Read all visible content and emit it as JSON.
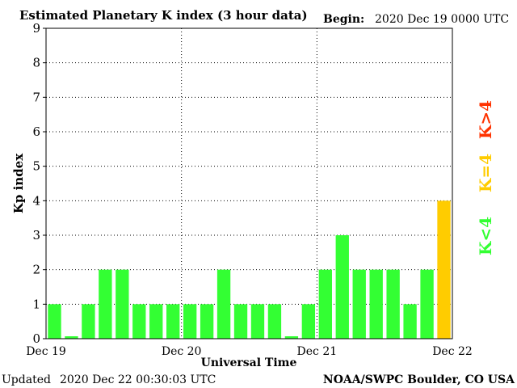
{
  "colors": {
    "low": "#33ff33",
    "storm_threshold": "#ffcc00",
    "storm": "#ff3300",
    "grid": "#000000",
    "background": "#ffffff"
  },
  "header": {
    "begin_label": "Begin:",
    "begin_value": "2020 Dec 19 0000 UTC"
  },
  "footer": {
    "updated_label": "Updated",
    "updated_value": "2020 Dec 22 00:30:03 UTC",
    "source": "NOAA/SWPC Boulder, CO USA"
  },
  "legend": {
    "low": "K<4",
    "equal": "K=4",
    "high": "K>4"
  },
  "chart_data": {
    "type": "bar",
    "title": "Estimated Planetary K index (3 hour data)",
    "xlabel": "Universal Time",
    "ylabel": "Kp index",
    "ylim": [
      0,
      9
    ],
    "yticks": [
      "0",
      "1",
      "2",
      "3",
      "4",
      "5",
      "6",
      "7",
      "8",
      "9"
    ],
    "xticks": [
      "Dec 19",
      "Dec 20",
      "Dec 21",
      "Dec 22"
    ],
    "grid": true,
    "bar_interval_hours": 3,
    "values": [
      1,
      0,
      1,
      2,
      2,
      1,
      1,
      1,
      1,
      1,
      2,
      1,
      1,
      1,
      0,
      1,
      2,
      3,
      2,
      2,
      2,
      1,
      2,
      4
    ]
  }
}
